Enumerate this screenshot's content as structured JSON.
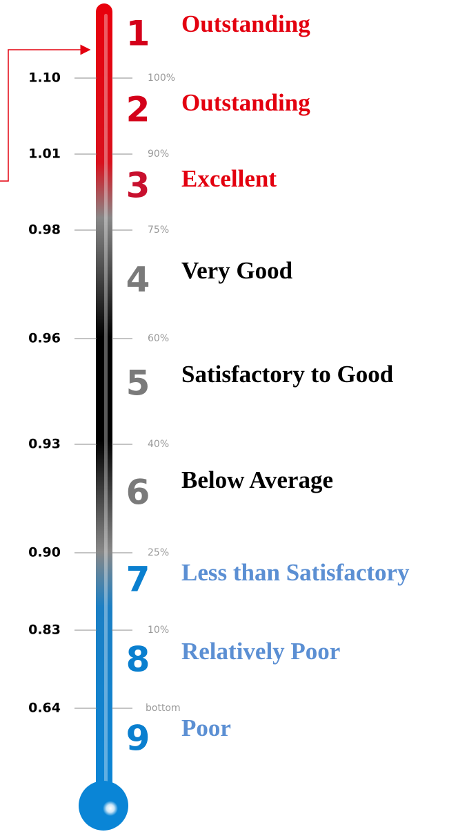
{
  "scale": [
    {
      "value": "1.10",
      "percentile": "100%"
    },
    {
      "value": "1.01",
      "percentile": "90%"
    },
    {
      "value": "0.98",
      "percentile": "75%"
    },
    {
      "value": "0.96",
      "percentile": "60%"
    },
    {
      "value": "0.93",
      "percentile": "40%"
    },
    {
      "value": "0.90",
      "percentile": "25%"
    },
    {
      "value": "0.83",
      "percentile": "10%"
    },
    {
      "value": "0.64",
      "percentile": "bottom"
    }
  ],
  "levels": [
    {
      "number": "1",
      "label": "Outstanding",
      "number_color": "#d4001a",
      "label_color": "#e3000f"
    },
    {
      "number": "2",
      "label": "Outstanding",
      "number_color": "#d4001a",
      "label_color": "#e3000f"
    },
    {
      "number": "3",
      "label": "Excellent",
      "number_color": "#c8102e",
      "label_color": "#e3000f"
    },
    {
      "number": "4",
      "label": "Very Good",
      "number_color": "#7a7a7a",
      "label_color": "#000000"
    },
    {
      "number": "5",
      "label": "Satisfactory to Good",
      "number_color": "#7a7a7a",
      "label_color": "#000000"
    },
    {
      "number": "6",
      "label": "Below Average",
      "number_color": "#7a7a7a",
      "label_color": "#000000"
    },
    {
      "number": "7",
      "label": "Less than Satisfactory",
      "number_color": "#0a7fcf",
      "label_color": "#5b8fd3"
    },
    {
      "number": "8",
      "label": "Relatively Poor",
      "number_color": "#0a7fcf",
      "label_color": "#5b8fd3"
    },
    {
      "number": "9",
      "label": "Poor",
      "number_color": "#0a7fcf",
      "label_color": "#5b8fd3"
    }
  ]
}
